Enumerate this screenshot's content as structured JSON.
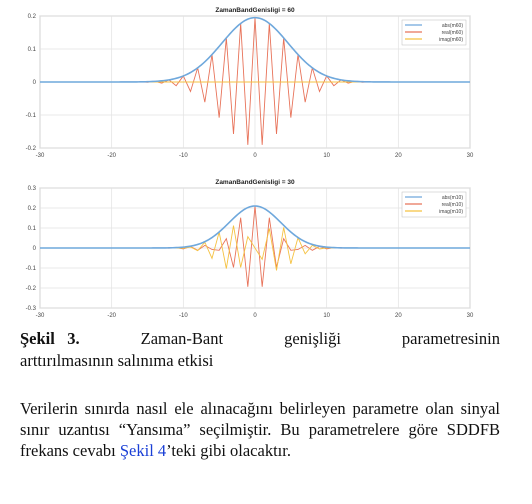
{
  "chart_data": [
    {
      "type": "line",
      "title": "ZamanBandGenisligi = 60",
      "xlabel": "",
      "ylabel": "",
      "xlim": [
        -30,
        30
      ],
      "ylim": [
        -0.2,
        0.2
      ],
      "xticks": [
        -30,
        -20,
        -10,
        0,
        10,
        20,
        30
      ],
      "yticks": [
        -0.2,
        -0.1,
        0,
        0.1,
        0.2
      ],
      "ytick_labels": [
        "-0.2",
        "-0.1",
        "0",
        "0.1",
        "0.2"
      ],
      "grid": true,
      "legend_position": "top-right",
      "series": [
        {
          "name": "abs(m60)",
          "color": "#6fa8dc",
          "shape": "gaussian",
          "amplitude": 0.195,
          "sigma": 4.6
        },
        {
          "name": "real(m60)",
          "color": "#e8735a",
          "shape": "oscillation",
          "amplitude": 0.195,
          "sigma": 4.6,
          "period": 2.0,
          "phase": 0
        },
        {
          "name": "imag(m60)",
          "color": "#f5c242",
          "shape": "oscillation",
          "amplitude": 0.195,
          "sigma": 4.6,
          "period": 2.0,
          "phase": 1.5708
        }
      ]
    },
    {
      "type": "line",
      "title": "ZamanBandGenisligi = 30",
      "xlabel": "",
      "ylabel": "",
      "xlim": [
        -30,
        30
      ],
      "ylim": [
        -0.3,
        0.3
      ],
      "xticks": [
        -30,
        -20,
        -10,
        0,
        10,
        20,
        30
      ],
      "yticks": [
        -0.3,
        -0.2,
        -0.1,
        0,
        0.1,
        0.2,
        0.3
      ],
      "ytick_labels": [
        "-0.3",
        "-0.2",
        "-0.1",
        "0",
        "0.1",
        "0.2",
        "0.3"
      ],
      "grid": true,
      "legend_position": "top-right",
      "series": [
        {
          "name": "abs(m10)",
          "color": "#6fa8dc",
          "shape": "gaussian",
          "amplitude": 0.21,
          "sigma": 3.6
        },
        {
          "name": "real(m10)",
          "color": "#e8735a",
          "shape": "oscillation",
          "amplitude": 0.21,
          "sigma": 3.6,
          "period": 2.2,
          "phase": 0
        },
        {
          "name": "imag(m10)",
          "color": "#f5c242",
          "shape": "oscillation",
          "amplitude": 0.21,
          "sigma": 3.6,
          "period": 2.2,
          "phase": 1.5708
        }
      ]
    }
  ],
  "caption": {
    "label": "Şekil",
    "number": "3.",
    "w1": "Zaman-Bant",
    "w2": "genişliği",
    "w3": "parametresinin",
    "line2": "arttırılmasının salınıma etkisi"
  },
  "body": {
    "before_link": "Verilerin sınırda nasıl ele alınacağını belirleyen parametre olan sinyal sınır uzantısı “Yansıma” seçilmiştir. Bu parametrelere göre SDDFB frekans cevabı ",
    "link": "Şekil 4",
    "after_link": "’teki gibi olacaktır."
  }
}
